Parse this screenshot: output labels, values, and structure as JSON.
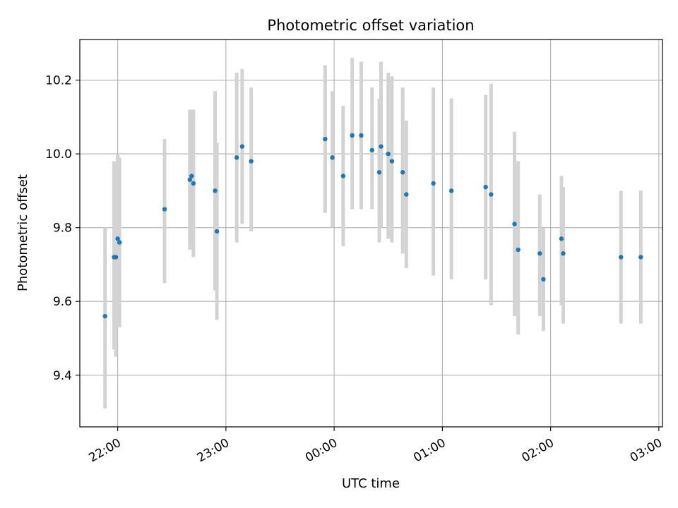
{
  "chart_data": {
    "type": "scatter",
    "title": "Photometric offset variation",
    "xlabel": "UTC time",
    "ylabel": "Photometric offset",
    "x_axis": {
      "type": "time",
      "min": "21:39",
      "max": "03:02"
    },
    "ylim": [
      9.26,
      10.31
    ],
    "grid": true,
    "x_ticks": [
      {
        "time": "22:00",
        "label": "22:00"
      },
      {
        "time": "23:00",
        "label": "23:00"
      },
      {
        "time": "00:00",
        "label": "00:00"
      },
      {
        "time": "01:00",
        "label": "01:00"
      },
      {
        "time": "02:00",
        "label": "02:00"
      },
      {
        "time": "03:00",
        "label": "03:00"
      }
    ],
    "y_ticks": [
      {
        "value": 9.4,
        "label": "9.4"
      },
      {
        "value": 9.6,
        "label": "9.6"
      },
      {
        "value": 9.8,
        "label": "9.8"
      },
      {
        "value": 10.0,
        "label": "10.0"
      },
      {
        "value": 10.2,
        "label": "10.2"
      }
    ],
    "colors": {
      "marker": "#1f77b4",
      "errorbar": "#d3d3d3",
      "grid": "#b0b0b0"
    },
    "points": [
      {
        "time": "21:53",
        "y": 9.56,
        "lo": 9.31,
        "hi": 9.8
      },
      {
        "time": "21:58",
        "y": 9.72,
        "lo": 9.47,
        "hi": 9.98
      },
      {
        "time": "21:59",
        "y": 9.72,
        "lo": 9.45,
        "hi": 9.98
      },
      {
        "time": "22:00",
        "y": 9.77,
        "lo": 9.53,
        "hi": 10.0
      },
      {
        "time": "22:01",
        "y": 9.76,
        "lo": 9.53,
        "hi": 9.99
      },
      {
        "time": "22:26",
        "y": 9.85,
        "lo": 9.65,
        "hi": 10.04
      },
      {
        "time": "22:40",
        "y": 9.93,
        "lo": 9.74,
        "hi": 10.12
      },
      {
        "time": "22:41",
        "y": 9.94,
        "lo": 9.76,
        "hi": 10.12
      },
      {
        "time": "22:42",
        "y": 9.92,
        "lo": 9.72,
        "hi": 10.12
      },
      {
        "time": "22:54",
        "y": 9.9,
        "lo": 9.63,
        "hi": 10.17
      },
      {
        "time": "22:55",
        "y": 9.79,
        "lo": 9.55,
        "hi": 10.03
      },
      {
        "time": "23:06",
        "y": 9.99,
        "lo": 9.76,
        "hi": 10.22
      },
      {
        "time": "23:09",
        "y": 10.02,
        "lo": 9.81,
        "hi": 10.23
      },
      {
        "time": "23:14",
        "y": 9.98,
        "lo": 9.79,
        "hi": 10.18
      },
      {
        "time": "23:55",
        "y": 10.04,
        "lo": 9.84,
        "hi": 10.24
      },
      {
        "time": "23:59",
        "y": 9.99,
        "lo": 9.8,
        "hi": 10.17
      },
      {
        "time": "00:05",
        "y": 9.94,
        "lo": 9.75,
        "hi": 10.13
      },
      {
        "time": "00:10",
        "y": 10.05,
        "lo": 9.85,
        "hi": 10.26
      },
      {
        "time": "00:15",
        "y": 10.05,
        "lo": 9.85,
        "hi": 10.25
      },
      {
        "time": "00:21",
        "y": 10.01,
        "lo": 9.85,
        "hi": 10.18
      },
      {
        "time": "00:25",
        "y": 9.95,
        "lo": 9.76,
        "hi": 10.15
      },
      {
        "time": "00:26",
        "y": 10.02,
        "lo": 9.8,
        "hi": 10.25
      },
      {
        "time": "00:30",
        "y": 10.0,
        "lo": 9.77,
        "hi": 10.22
      },
      {
        "time": "00:32",
        "y": 9.98,
        "lo": 9.76,
        "hi": 10.21
      },
      {
        "time": "00:38",
        "y": 9.95,
        "lo": 9.73,
        "hi": 10.18
      },
      {
        "time": "00:40",
        "y": 9.89,
        "lo": 9.69,
        "hi": 10.09
      },
      {
        "time": "00:55",
        "y": 9.92,
        "lo": 9.67,
        "hi": 10.18
      },
      {
        "time": "01:05",
        "y": 9.9,
        "lo": 9.66,
        "hi": 10.15
      },
      {
        "time": "01:24",
        "y": 9.91,
        "lo": 9.66,
        "hi": 10.16
      },
      {
        "time": "01:27",
        "y": 9.89,
        "lo": 9.59,
        "hi": 10.19
      },
      {
        "time": "01:40",
        "y": 9.81,
        "lo": 9.56,
        "hi": 10.06
      },
      {
        "time": "01:42",
        "y": 9.74,
        "lo": 9.51,
        "hi": 9.98
      },
      {
        "time": "01:54",
        "y": 9.73,
        "lo": 9.56,
        "hi": 9.89
      },
      {
        "time": "01:56",
        "y": 9.66,
        "lo": 9.52,
        "hi": 9.8
      },
      {
        "time": "02:06",
        "y": 9.77,
        "lo": 9.59,
        "hi": 9.94
      },
      {
        "time": "02:07",
        "y": 9.73,
        "lo": 9.54,
        "hi": 9.91
      },
      {
        "time": "02:39",
        "y": 9.72,
        "lo": 9.54,
        "hi": 9.9
      },
      {
        "time": "02:50",
        "y": 9.72,
        "lo": 9.54,
        "hi": 9.9
      }
    ]
  }
}
